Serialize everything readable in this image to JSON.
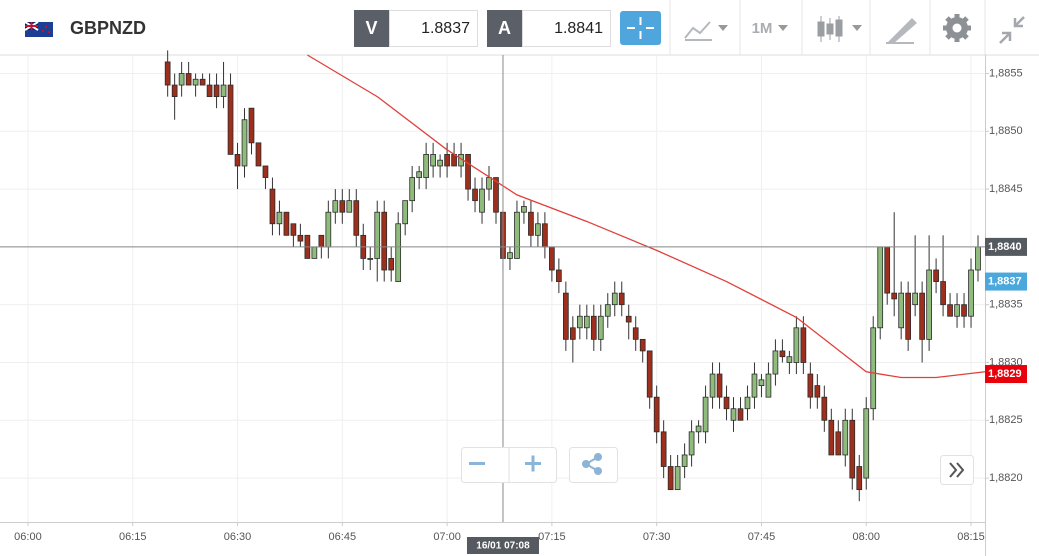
{
  "header": {
    "symbol": "GBPNZD",
    "bid": {
      "label": "V",
      "value": 1.8837
    },
    "ask": {
      "label": "A",
      "value": 1.8841
    },
    "timeframe": "1M"
  },
  "chart_data": {
    "type": "candlestick",
    "up_color": "#8fbc7c",
    "down_color": "#9e2f1c",
    "x": [
      "06:20",
      "06:21",
      "06:22",
      "06:23",
      "06:24",
      "06:25",
      "06:26",
      "06:27",
      "06:28",
      "06:29",
      "06:30",
      "06:31",
      "06:32",
      "06:33",
      "06:34",
      "06:35",
      "06:36",
      "06:37",
      "06:38",
      "06:39",
      "06:40",
      "06:41",
      "06:42",
      "06:43",
      "06:44",
      "06:45",
      "06:46",
      "06:47",
      "06:48",
      "06:49",
      "06:50",
      "06:51",
      "06:52",
      "06:53",
      "06:54",
      "06:55",
      "06:56",
      "06:57",
      "06:58",
      "06:59",
      "07:00",
      "07:01",
      "07:02",
      "07:03",
      "07:04",
      "07:05",
      "07:06",
      "07:07",
      "07:08",
      "07:09",
      "07:10",
      "07:11",
      "07:12",
      "07:13",
      "07:14",
      "07:15",
      "07:16",
      "07:17",
      "07:18",
      "07:19",
      "07:20",
      "07:21",
      "07:22",
      "07:23",
      "07:24",
      "07:25",
      "07:26",
      "07:27",
      "07:28",
      "07:29",
      "07:30",
      "07:31",
      "07:32",
      "07:33",
      "07:34",
      "07:35",
      "07:36",
      "07:37",
      "07:38",
      "07:39",
      "07:40",
      "07:41",
      "07:42",
      "07:43",
      "07:44",
      "07:45",
      "07:46",
      "07:47",
      "07:48",
      "07:49",
      "07:50",
      "07:51",
      "07:52",
      "07:53",
      "07:54",
      "07:55",
      "07:56",
      "07:57",
      "07:58",
      "07:59",
      "08:00",
      "08:01",
      "08:02",
      "08:03",
      "08:04",
      "08:05",
      "08:06",
      "08:07",
      "08:08",
      "08:09",
      "08:10",
      "08:11",
      "08:12",
      "08:13",
      "08:14",
      "08:15",
      "08:16"
    ],
    "open": [
      1.8856,
      1.8854,
      1.8854,
      1.8855,
      1.8854,
      1.88545,
      1.8854,
      1.8854,
      1.8853,
      1.8854,
      1.8848,
      1.8847,
      1.8852,
      1.8849,
      1.8847,
      1.8845,
      1.8842,
      1.8843,
      1.8842,
      1.8841,
      1.8841,
      1.8839,
      1.8841,
      1.884,
      1.8843,
      1.8844,
      1.8843,
      1.8844,
      1.8841,
      1.8839,
      1.8839,
      1.8843,
      1.8839,
      1.8837,
      1.8842,
      1.8844,
      1.8846,
      1.8846,
      1.8847,
      1.8847,
      1.8848,
      1.8848,
      1.8847,
      1.8848,
      1.8845,
      1.8843,
      1.8845,
      1.8846,
      1.8843,
      1.8839,
      1.8839,
      1.8843,
      1.8843,
      1.8841,
      1.8842,
      1.884,
      1.8838,
      1.8836,
      1.8833,
      1.8833,
      1.8833,
      1.8834,
      1.8832,
      1.8834,
      1.8835,
      1.8836,
      1.8834,
      1.8833,
      1.8832,
      1.8831,
      1.8827,
      1.8824,
      1.8821,
      1.8819,
      1.8821,
      1.8822,
      1.8824,
      1.8824,
      1.8827,
      1.8829,
      1.8827,
      1.8825,
      1.8826,
      1.8826,
      1.8827,
      1.8828,
      1.8827,
      1.8829,
      1.8831,
      1.883,
      1.883,
      1.8833,
      1.8829,
      1.8828,
      1.8827,
      1.8825,
      1.8824,
      1.8822,
      1.8825,
      1.8821,
      1.882,
      1.8826,
      1.8833,
      1.884,
      1.8836,
      1.8833,
      1.8836,
      1.8835,
      1.8836,
      1.8832,
      1.8838,
      1.8837,
      1.8835,
      1.8834,
      1.8835,
      1.8834,
      1.8838
    ],
    "high": [
      1.8857,
      1.8855,
      1.8856,
      1.8856,
      1.8855,
      1.8855,
      1.8855,
      1.8855,
      1.8856,
      1.8855,
      1.8849,
      1.8852,
      1.8852,
      1.8849,
      1.8847,
      1.8846,
      1.8844,
      1.8843,
      1.8842,
      1.8842,
      1.8841,
      1.884,
      1.8841,
      1.8844,
      1.8845,
      1.8845,
      1.8845,
      1.8845,
      1.8842,
      1.884,
      1.8844,
      1.8844,
      1.884,
      1.8843,
      1.8844,
      1.8847,
      1.8847,
      1.8849,
      1.8849,
      1.8848,
      1.8849,
      1.8849,
      1.8849,
      1.8848,
      1.8846,
      1.8846,
      1.8847,
      1.8846,
      1.8843,
      1.884,
      1.8844,
      1.8844,
      1.8844,
      1.8843,
      1.8843,
      1.884,
      1.8839,
      1.8837,
      1.8834,
      1.8835,
      1.8835,
      1.8835,
      1.8835,
      1.8836,
      1.8837,
      1.8837,
      1.8835,
      1.8834,
      1.8832,
      1.8831,
      1.8828,
      1.8825,
      1.8822,
      1.8822,
      1.8823,
      1.8825,
      1.8825,
      1.8828,
      1.883,
      1.883,
      1.8828,
      1.8827,
      1.8827,
      1.8828,
      1.883,
      1.8829,
      1.883,
      1.8832,
      1.8832,
      1.8831,
      1.8834,
      1.8834,
      1.883,
      1.8829,
      1.8828,
      1.8826,
      1.8825,
      1.8826,
      1.8826,
      1.8822,
      1.8827,
      1.8834,
      1.884,
      1.884,
      1.8843,
      1.8837,
      1.8837,
      1.8841,
      1.8837,
      1.8841,
      1.8839,
      1.8841,
      1.8836,
      1.8836,
      1.8836,
      1.8839,
      1.8841
    ],
    "low": [
      1.8853,
      1.8851,
      1.8853,
      1.8854,
      1.8853,
      1.8854,
      1.8853,
      1.8852,
      1.8852,
      1.8848,
      1.8845,
      1.8846,
      1.8848,
      1.8847,
      1.8845,
      1.8841,
      1.8841,
      1.8841,
      1.884,
      1.884,
      1.8839,
      1.8839,
      1.8839,
      1.8839,
      1.8842,
      1.8842,
      1.8843,
      1.884,
      1.8838,
      1.8838,
      1.8837,
      1.8837,
      1.8837,
      1.8837,
      1.8841,
      1.8843,
      1.8845,
      1.8845,
      1.8846,
      1.8846,
      1.8846,
      1.8847,
      1.8846,
      1.8844,
      1.8843,
      1.8842,
      1.8844,
      1.8842,
      1.8838,
      1.8838,
      1.8839,
      1.8842,
      1.884,
      1.884,
      1.8839,
      1.8837,
      1.8836,
      1.8831,
      1.883,
      1.8832,
      1.8832,
      1.8831,
      1.8831,
      1.8833,
      1.8834,
      1.8834,
      1.8832,
      1.8831,
      1.883,
      1.8826,
      1.8823,
      1.882,
      1.8819,
      1.8819,
      1.882,
      1.8821,
      1.8823,
      1.8823,
      1.8826,
      1.8826,
      1.8825,
      1.8824,
      1.8825,
      1.8825,
      1.8826,
      1.8827,
      1.8827,
      1.8828,
      1.883,
      1.8829,
      1.8829,
      1.8829,
      1.8826,
      1.8826,
      1.8824,
      1.8822,
      1.8822,
      1.8821,
      1.8819,
      1.8818,
      1.8819,
      1.8825,
      1.8832,
      1.8835,
      1.8834,
      1.8832,
      1.8831,
      1.8834,
      1.883,
      1.8831,
      1.8836,
      1.8834,
      1.8834,
      1.8833,
      1.8833,
      1.8833,
      1.8837
    ],
    "close": [
      1.8854,
      1.8853,
      1.8855,
      1.8854,
      1.88545,
      1.8854,
      1.8853,
      1.8853,
      1.8854,
      1.8848,
      1.8847,
      1.8851,
      1.8849,
      1.8847,
      1.8846,
      1.8842,
      1.8843,
      1.8841,
      1.8841,
      1.88405,
      1.8839,
      1.884,
      1.884,
      1.8843,
      1.8844,
      1.8843,
      1.8844,
      1.8841,
      1.8839,
      1.8839,
      1.8843,
      1.8838,
      1.8838,
      1.8842,
      1.8844,
      1.8846,
      1.88465,
      1.8848,
      1.8848,
      1.88475,
      1.8847,
      1.8847,
      1.8848,
      1.8845,
      1.8844,
      1.8845,
      1.8846,
      1.8843,
      1.8839,
      1.88395,
      1.8843,
      1.88435,
      1.8841,
      1.8842,
      1.884,
      1.8838,
      1.8837,
      1.8832,
      1.8832,
      1.8834,
      1.8834,
      1.8832,
      1.8834,
      1.8835,
      1.8836,
      1.8835,
      1.88335,
      1.8832,
      1.8831,
      1.8827,
      1.8824,
      1.8821,
      1.8819,
      1.8821,
      1.8822,
      1.8824,
      1.88245,
      1.8827,
      1.8829,
      1.8827,
      1.8826,
      1.8826,
      1.8825,
      1.8827,
      1.8829,
      1.88285,
      1.8829,
      1.8831,
      1.88305,
      1.88305,
      1.8833,
      1.883,
      1.8827,
      1.8827,
      1.8825,
      1.8822,
      1.8822,
      1.8825,
      1.882,
      1.8819,
      1.8826,
      1.8833,
      1.884,
      1.8836,
      1.88355,
      1.8836,
      1.8832,
      1.8836,
      1.8832,
      1.8838,
      1.8837,
      1.8835,
      1.8834,
      1.8835,
      1.8834,
      1.8838,
      1.884
    ],
    "ma": {
      "color": "#e0403a",
      "x": [
        "06:40",
        "06:50",
        "07:00",
        "07:10",
        "07:20",
        "07:30",
        "07:40",
        "07:50",
        "08:00",
        "08:05",
        "08:10",
        "08:17"
      ],
      "values": [
        1.88566,
        1.8853,
        1.88484,
        1.88445,
        1.88422,
        1.88397,
        1.8837,
        1.88339,
        1.88292,
        1.88287,
        1.88287,
        1.88292
      ]
    },
    "xlim": [
      "05:56",
      "08:17"
    ],
    "xticks": [
      "06:00",
      "06:15",
      "06:30",
      "06:45",
      "07:00",
      "07:15",
      "07:30",
      "07:45",
      "08:00",
      "08:15"
    ],
    "ylim": [
      1.88162,
      1.88566
    ],
    "yticks": [
      {
        "value": 1.8855,
        "label": "1,8855"
      },
      {
        "value": 1.885,
        "label": "1,8850"
      },
      {
        "value": 1.8845,
        "label": "1,8845"
      },
      {
        "value": 1.884,
        "label": "1,8840"
      },
      {
        "value": 1.8835,
        "label": "1,8835"
      },
      {
        "value": 1.883,
        "label": "1,8830"
      },
      {
        "value": 1.8825,
        "label": "1,8825"
      },
      {
        "value": 1.882,
        "label": "1,8820"
      }
    ],
    "grid": true,
    "crosshair": {
      "x": "07:08",
      "x_label": "16/01 07:08",
      "y": {
        "value": 1.884,
        "label": "1,8840"
      },
      "color": "#555a60"
    },
    "price_tags": [
      {
        "value": 1.8837,
        "label": "1,8837",
        "color": "#4aa8dc"
      },
      {
        "value": 1.8829,
        "label": "1,8829",
        "color": "#e8000b"
      }
    ]
  }
}
